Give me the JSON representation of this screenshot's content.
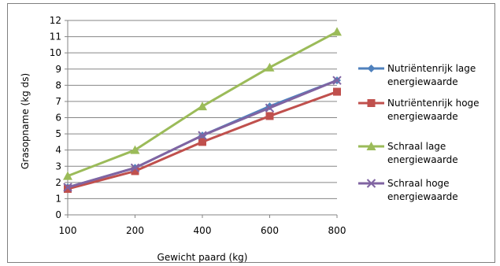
{
  "chart_data": {
    "type": "line",
    "categories": [
      "100",
      "200",
      "400",
      "600",
      "800"
    ],
    "xlabel": "Gewicht paard (kg)",
    "ylabel": "Grasopname (kg ds)",
    "ylim": [
      0,
      12
    ],
    "yticks": [
      "0",
      "1",
      "2",
      "3",
      "4",
      "5",
      "6",
      "7",
      "8",
      "9",
      "10",
      "11",
      "12"
    ],
    "grid": true,
    "legend_position": "right",
    "series": [
      {
        "name": "Nutriëntenrijk lage energiewaarde",
        "legend_lines": [
          "Nutriëntenrijk lage",
          "energiewaarde"
        ],
        "color": "#4f81bd",
        "marker": "diamond",
        "values": [
          1.7,
          2.9,
          4.9,
          6.7,
          8.3
        ]
      },
      {
        "name": "Nutriëntenrijk hoge energiewaarde",
        "legend_lines": [
          "Nutriëntenrijk hoge",
          "energiewaarde"
        ],
        "color": "#c0504d",
        "marker": "square",
        "values": [
          1.6,
          2.7,
          4.5,
          6.1,
          7.6
        ]
      },
      {
        "name": "Schraal lage energiewaarde",
        "legend_lines": [
          "Schraal lage",
          "energiewaarde"
        ],
        "color": "#9bbb59",
        "marker": "triangle",
        "values": [
          2.4,
          4.0,
          6.7,
          9.1,
          11.3
        ]
      },
      {
        "name": "Schraal hoge energiewaarde",
        "legend_lines": [
          "Schraal hoge",
          "energiewaarde"
        ],
        "color": "#8064a2",
        "marker": "x",
        "values": [
          1.7,
          2.9,
          4.9,
          6.6,
          8.3
        ]
      }
    ]
  }
}
